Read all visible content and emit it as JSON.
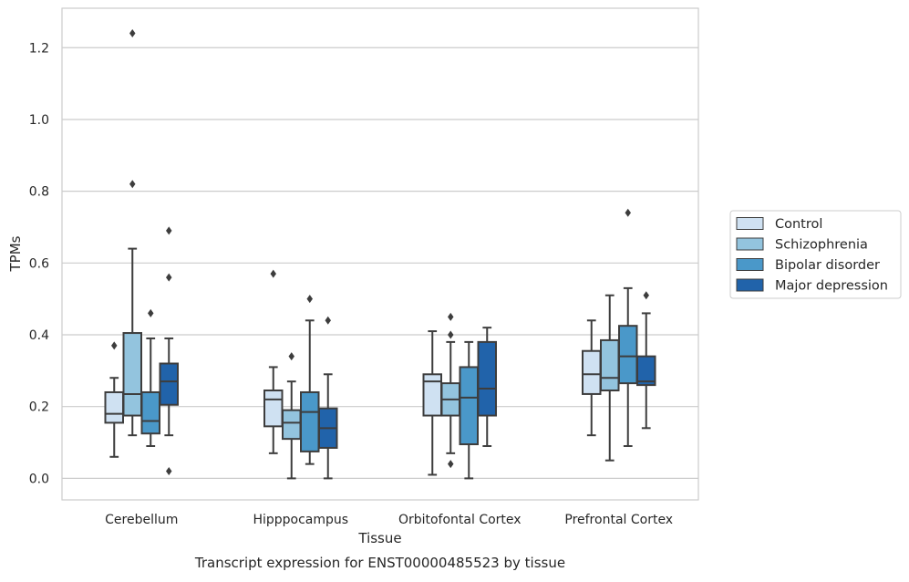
{
  "chart_data": {
    "type": "box",
    "caption": "Transcript expression for ENST00000485523 by tissue",
    "xlabel": "Tissue",
    "ylabel": "TPMs",
    "ylim": [
      -0.06,
      1.31
    ],
    "yticks": [
      0.0,
      0.2,
      0.4,
      0.6,
      0.8,
      1.0,
      1.2
    ],
    "ytick_labels": [
      "0.0",
      "0.2",
      "0.4",
      "0.6",
      "0.8",
      "1.0",
      "1.2"
    ],
    "grid": "horizontal",
    "legend_position": "right-outside",
    "categories": [
      "Cerebellum",
      "Hipppocampus",
      "Orbitofontal Cortex",
      "Prefrontal Cortex"
    ],
    "series": [
      {
        "name": "Control",
        "color": "#cfe1f2",
        "boxes": [
          {
            "whisker_low": 0.06,
            "q1": 0.155,
            "median": 0.18,
            "q3": 0.24,
            "whisker_high": 0.28,
            "outliers": [
              0.37
            ]
          },
          {
            "whisker_low": 0.07,
            "q1": 0.145,
            "median": 0.22,
            "q3": 0.245,
            "whisker_high": 0.31,
            "outliers": [
              0.57
            ]
          },
          {
            "whisker_low": 0.01,
            "q1": 0.175,
            "median": 0.27,
            "q3": 0.29,
            "whisker_high": 0.41,
            "outliers": []
          },
          {
            "whisker_low": 0.12,
            "q1": 0.235,
            "median": 0.29,
            "q3": 0.355,
            "whisker_high": 0.44,
            "outliers": []
          }
        ]
      },
      {
        "name": "Schizophrenia",
        "color": "#93c4de",
        "boxes": [
          {
            "whisker_low": 0.12,
            "q1": 0.175,
            "median": 0.235,
            "q3": 0.405,
            "whisker_high": 0.64,
            "outliers": [
              0.82,
              1.24
            ]
          },
          {
            "whisker_low": 0.0,
            "q1": 0.11,
            "median": 0.155,
            "q3": 0.19,
            "whisker_high": 0.27,
            "outliers": [
              0.34
            ]
          },
          {
            "whisker_low": 0.07,
            "q1": 0.175,
            "median": 0.22,
            "q3": 0.265,
            "whisker_high": 0.38,
            "outliers": [
              0.04,
              0.4,
              0.45
            ]
          },
          {
            "whisker_low": 0.05,
            "q1": 0.245,
            "median": 0.28,
            "q3": 0.385,
            "whisker_high": 0.51,
            "outliers": []
          }
        ]
      },
      {
        "name": "Bipolar disorder",
        "color": "#4a98c9",
        "boxes": [
          {
            "whisker_low": 0.09,
            "q1": 0.125,
            "median": 0.16,
            "q3": 0.24,
            "whisker_high": 0.39,
            "outliers": [
              0.46
            ]
          },
          {
            "whisker_low": 0.04,
            "q1": 0.075,
            "median": 0.185,
            "q3": 0.24,
            "whisker_high": 0.44,
            "outliers": [
              0.5
            ]
          },
          {
            "whisker_low": 0.0,
            "q1": 0.095,
            "median": 0.225,
            "q3": 0.31,
            "whisker_high": 0.38,
            "outliers": []
          },
          {
            "whisker_low": 0.09,
            "q1": 0.265,
            "median": 0.34,
            "q3": 0.425,
            "whisker_high": 0.53,
            "outliers": [
              0.74
            ]
          }
        ]
      },
      {
        "name": "Major depression",
        "color": "#2163aa",
        "boxes": [
          {
            "whisker_low": 0.12,
            "q1": 0.205,
            "median": 0.27,
            "q3": 0.32,
            "whisker_high": 0.39,
            "outliers": [
              0.02,
              0.56,
              0.69
            ]
          },
          {
            "whisker_low": 0.0,
            "q1": 0.085,
            "median": 0.14,
            "q3": 0.195,
            "whisker_high": 0.29,
            "outliers": [
              0.44
            ]
          },
          {
            "whisker_low": 0.09,
            "q1": 0.175,
            "median": 0.25,
            "q3": 0.38,
            "whisker_high": 0.42,
            "outliers": []
          },
          {
            "whisker_low": 0.14,
            "q1": 0.26,
            "median": 0.27,
            "q3": 0.34,
            "whisker_high": 0.46,
            "outliers": [
              0.51
            ]
          }
        ]
      }
    ]
  }
}
